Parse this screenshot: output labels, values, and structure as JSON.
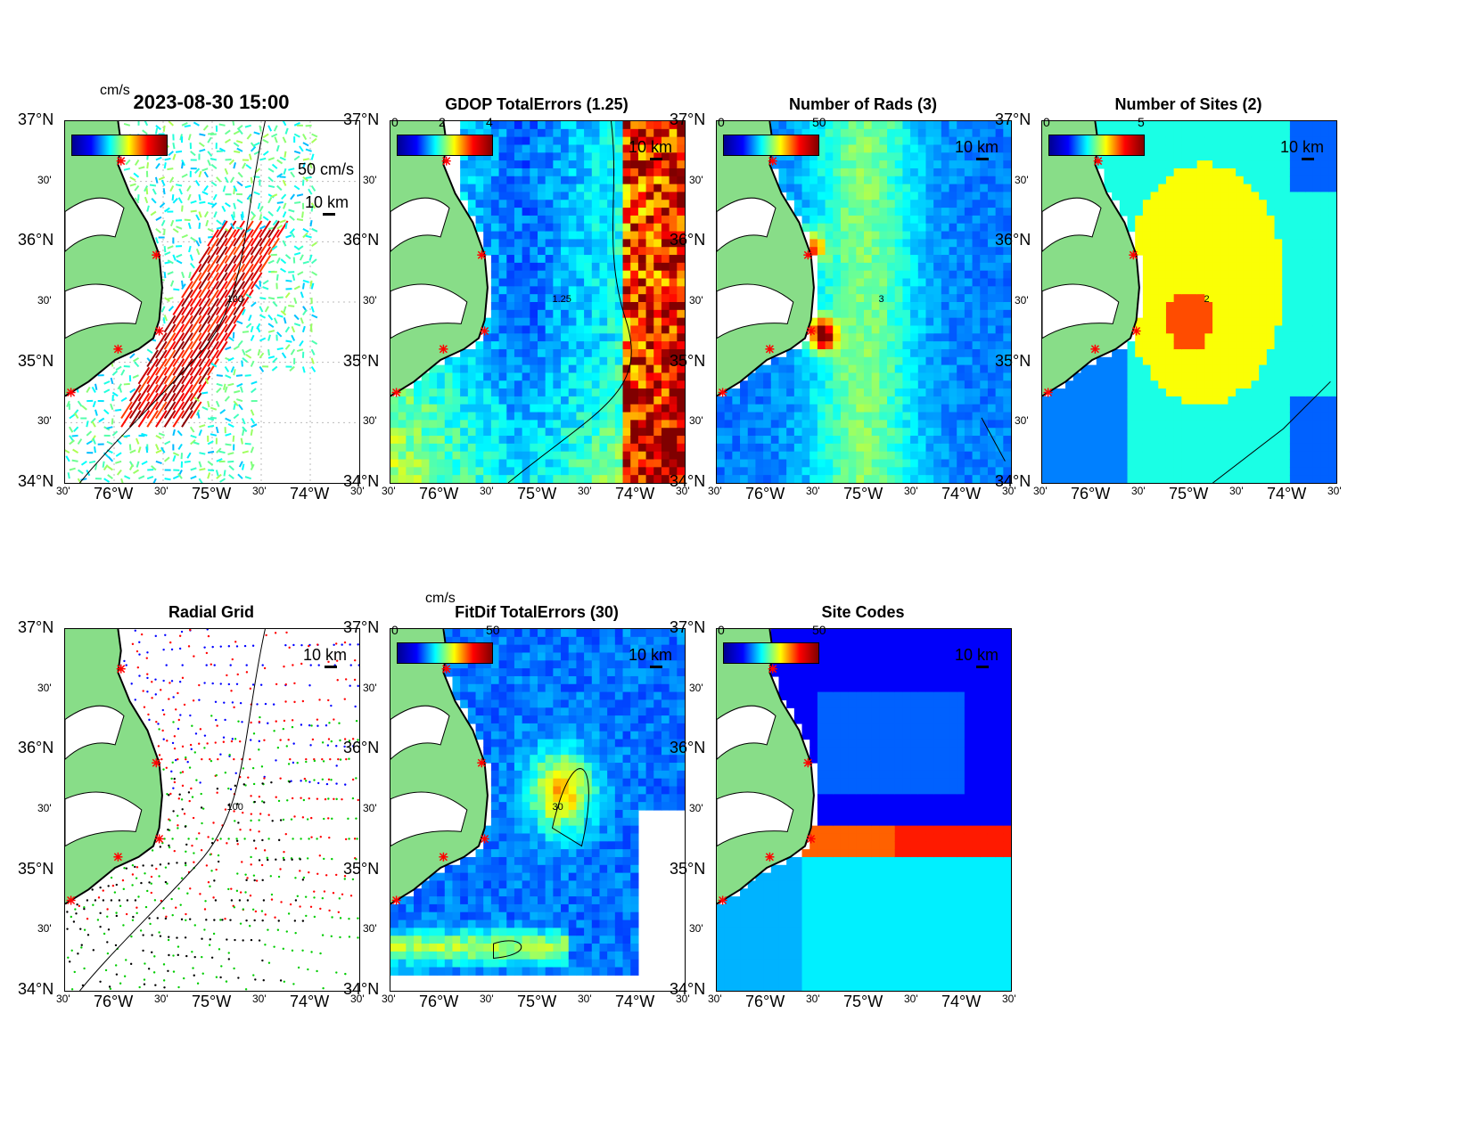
{
  "figure": {
    "lat_labels": [
      "37°N",
      "30'",
      "36°N",
      "30'",
      "35°N",
      "30'",
      "34°N"
    ],
    "lon_labels": [
      "30'",
      "76°W",
      "30'",
      "75°W",
      "30'",
      "74°W",
      "30'"
    ],
    "scale_label": "10 km",
    "site_marker_color": "#ff0000",
    "land_color": "#88dd88"
  },
  "panels": [
    {
      "id": "totals",
      "title": "2023-08-30 15:00",
      "cbar_unit": "cm/s",
      "cbar_ticks": [],
      "vector_scale": "50 cm/s",
      "contour_label": "100"
    },
    {
      "id": "gdop",
      "title": "GDOP TotalErrors (1.25)",
      "cbar_unit": "",
      "cbar_ticks": [
        "0",
        "2",
        "4"
      ],
      "contour_label": "1.25"
    },
    {
      "id": "rads",
      "title": "Number of Rads (3)",
      "cbar_unit": "",
      "cbar_ticks": [
        "0",
        "50"
      ],
      "contour_label": "3"
    },
    {
      "id": "sites",
      "title": "Number of Sites (2)",
      "cbar_unit": "",
      "cbar_ticks": [
        "0",
        "5"
      ],
      "contour_label": "2"
    },
    {
      "id": "radial",
      "title": "Radial Grid",
      "cbar_unit": "",
      "cbar_ticks": [],
      "contour_label": "100"
    },
    {
      "id": "fitdif",
      "title": "FitDif TotalErrors (30)",
      "cbar_unit": "cm/s",
      "cbar_ticks": [
        "0",
        "50"
      ],
      "contour_label": "30"
    },
    {
      "id": "codes",
      "title": "Site Codes",
      "cbar_unit": "",
      "cbar_ticks": [
        "0",
        "50"
      ],
      "contour_label": ""
    }
  ],
  "radial_grid": {
    "site_colors": [
      "#0000ff",
      "#ff0000",
      "#00cc00",
      "#000000"
    ]
  }
}
